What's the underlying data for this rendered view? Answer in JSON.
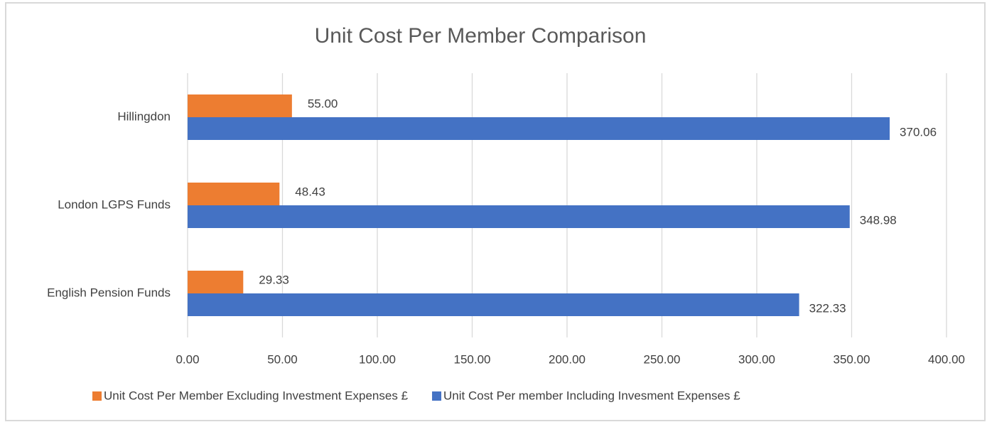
{
  "chart_data": {
    "type": "hbar",
    "title": "Unit Cost Per Member Comparison",
    "categories": [
      "Hillingdon",
      "London LGPS Funds",
      "English Pension Funds"
    ],
    "series": [
      {
        "name": "Unit Cost Per Member Excluding Investment Expenses £",
        "color": "#ed7d31",
        "values": [
          55.0,
          48.43,
          29.33
        ],
        "value_labels": [
          "55.00",
          "48.43",
          "29.33"
        ]
      },
      {
        "name": "Unit Cost Per member Including Invesment Expenses £",
        "color": "#4472c4",
        "values": [
          370.06,
          348.98,
          322.33
        ],
        "value_labels": [
          "370.06",
          "348.98",
          "322.33"
        ]
      }
    ],
    "xlim": [
      0,
      400
    ],
    "xticks": [
      {
        "value": 0,
        "label": "0.00"
      },
      {
        "value": 50,
        "label": "50.00"
      },
      {
        "value": 100,
        "label": "100.00"
      },
      {
        "value": 150,
        "label": "150.00"
      },
      {
        "value": 200,
        "label": "200.00"
      },
      {
        "value": 250,
        "label": "250.00"
      },
      {
        "value": 300,
        "label": "300.00"
      },
      {
        "value": 350,
        "label": "350.00"
      },
      {
        "value": 400,
        "label": "400.00"
      }
    ],
    "grid": true,
    "legend": "bottom"
  }
}
